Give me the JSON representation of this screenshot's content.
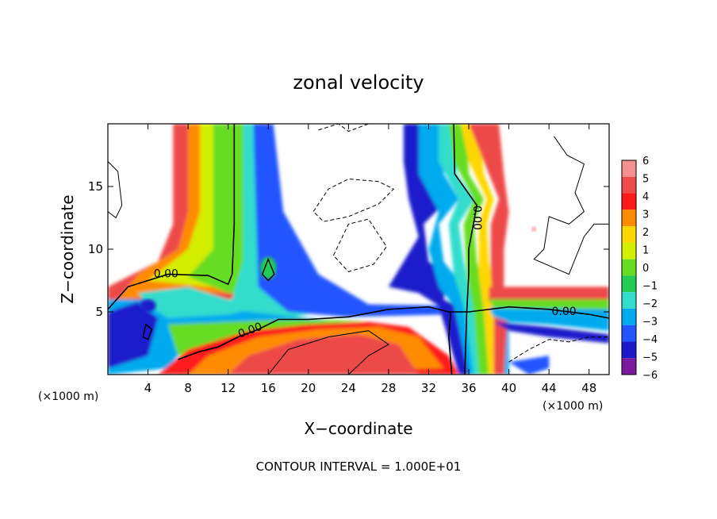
{
  "chart_data": {
    "type": "heatmap",
    "title": "zonal velocity",
    "xlabel": "X−coordinate",
    "ylabel": "Z−coordinate",
    "x_unit_left": "(×1000 m)",
    "x_unit_right": "(×1000 m)",
    "xlim": [
      0,
      50
    ],
    "ylim": [
      0,
      20
    ],
    "x_ticks": [
      4,
      8,
      12,
      16,
      20,
      24,
      28,
      32,
      36,
      40,
      44,
      48
    ],
    "x_tick_labels": [
      "4",
      "8",
      "12",
      "16",
      "20",
      "24",
      "28",
      "32",
      "36",
      "40",
      "44",
      "48"
    ],
    "y_ticks": [
      5,
      10,
      15
    ],
    "y_tick_labels": [
      "5",
      "10",
      "15"
    ],
    "footer": "CONTOUR INTERVAL = 1.000E+01",
    "colorbar": {
      "values": [
        6,
        5,
        4,
        3,
        2,
        1,
        0,
        -1,
        -2,
        -3,
        -4,
        -5,
        -6
      ],
      "labels": [
        "6",
        "5",
        "4",
        "3",
        "2",
        "1",
        "0",
        "−1",
        "−2",
        "−3",
        "−4",
        "−5",
        "−6"
      ],
      "colors": [
        "#f49090",
        "#ee4a4a",
        "#ff1a1a",
        "#ff8c00",
        "#ffd700",
        "#d4ee00",
        "#66dd22",
        "#22cc55",
        "#33ddcc",
        "#00aaee",
        "#2255ff",
        "#1a1acc",
        "#7a1aa0"
      ]
    },
    "contour_labels": [
      {
        "text": "0.00",
        "x": 5.8,
        "z": 8.0,
        "rotate": 0
      },
      {
        "text": "0.00",
        "x": 14.2,
        "z": 3.5,
        "rotate": -20
      },
      {
        "text": "0.00",
        "x": 36.8,
        "z": 12.5,
        "rotate": 90
      },
      {
        "text": "0.00",
        "x": 45.5,
        "z": 5.0,
        "rotate": 0
      }
    ]
  }
}
